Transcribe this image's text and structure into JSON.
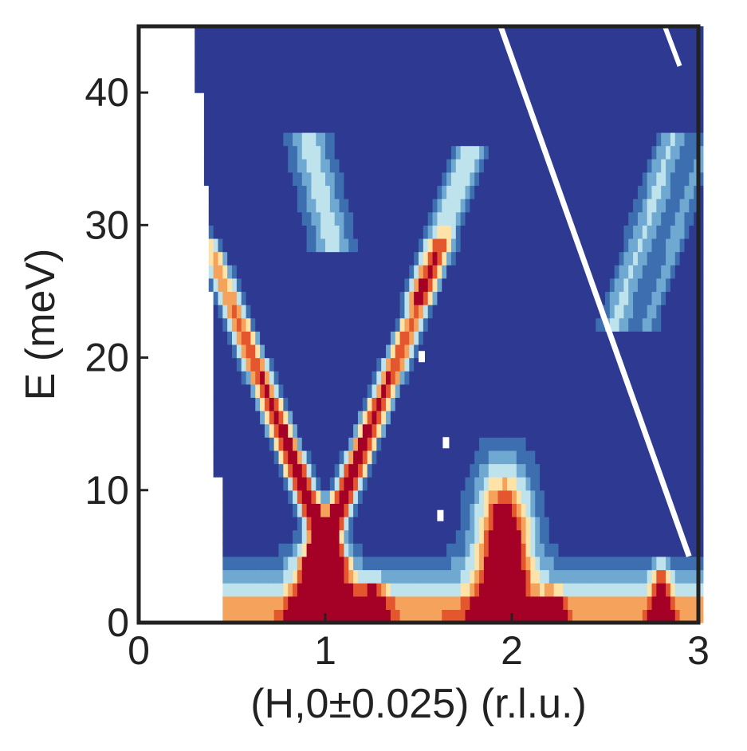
{
  "chart_data": {
    "type": "heatmap",
    "title": "",
    "xlabel": "(H,0±0.025) (r.l.u.)",
    "ylabel": "E (meV)",
    "xlim": [
      0,
      3
    ],
    "ylim": [
      0,
      45
    ],
    "x_ticks": [
      "0",
      "1",
      "2",
      "3"
    ],
    "y_ticks": [
      "0",
      "10",
      "20",
      "30",
      "40"
    ],
    "grid": false,
    "colormap": [
      "#2E3A92",
      "#3D6FB0",
      "#6FA8D0",
      "#BFE3EC",
      "#FDE3A7",
      "#F5A35C",
      "#E4572E",
      "#A50026"
    ],
    "features": [
      {
        "label": "dispersive branch (left)",
        "x_range": [
          0.42,
          0.98
        ],
        "e_range": [
          5,
          27
        ],
        "peak_intensity": "high"
      },
      {
        "label": "dispersive branch (right)",
        "x_range": [
          1.02,
          1.58
        ],
        "e_range": [
          5,
          27
        ],
        "peak_intensity": "high"
      },
      {
        "label": "peak near H=1",
        "x": 0.98,
        "e_range": [
          0,
          6
        ],
        "peak_intensity": "max"
      },
      {
        "label": "peak near H=2",
        "x": 1.95,
        "e_range": [
          0,
          10
        ],
        "peak_intensity": "max"
      },
      {
        "label": "peak near H=2.8",
        "x": 2.8,
        "e_range": [
          0,
          4
        ],
        "peak_intensity": "max"
      },
      {
        "label": "weak upper branch",
        "x_range": [
          0.9,
          1.9
        ],
        "e_range": [
          25,
          36
        ],
        "peak_intensity": "low"
      },
      {
        "label": "weak branch near H=3",
        "x_range": [
          2.5,
          3.0
        ],
        "e_range": [
          22,
          36
        ],
        "peak_intensity": "low"
      }
    ]
  }
}
